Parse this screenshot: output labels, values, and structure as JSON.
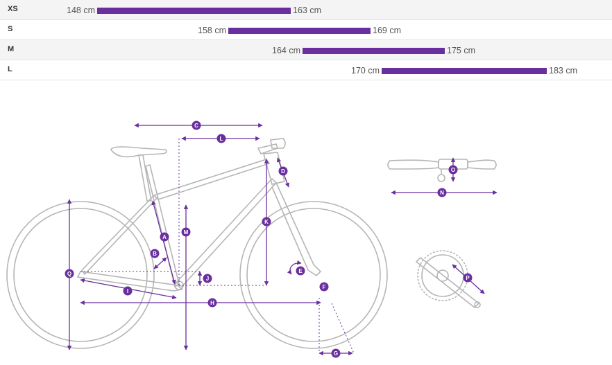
{
  "sizes": [
    {
      "size": "XS",
      "min_label": "148 cm",
      "max_label": "163 cm",
      "min_cm": 148,
      "max_cm": 163
    },
    {
      "size": "S",
      "min_label": "158 cm",
      "max_label": "169 cm",
      "min_cm": 158,
      "max_cm": 169
    },
    {
      "size": "M",
      "min_label": "164 cm",
      "max_label": "175 cm",
      "min_cm": 164,
      "max_cm": 175
    },
    {
      "size": "L",
      "min_label": "170 cm",
      "max_label": "183 cm",
      "min_cm": 170,
      "max_cm": 183
    }
  ],
  "geometry_labels": [
    "A",
    "B",
    "C",
    "D",
    "E",
    "F",
    "G",
    "H",
    "I",
    "J",
    "K",
    "L",
    "M",
    "N",
    "O",
    "P",
    "Q"
  ],
  "colors": {
    "accent": "#6a2f9e",
    "frame_line": "#b8b8b8",
    "row_alt": "#f4f4f4"
  }
}
